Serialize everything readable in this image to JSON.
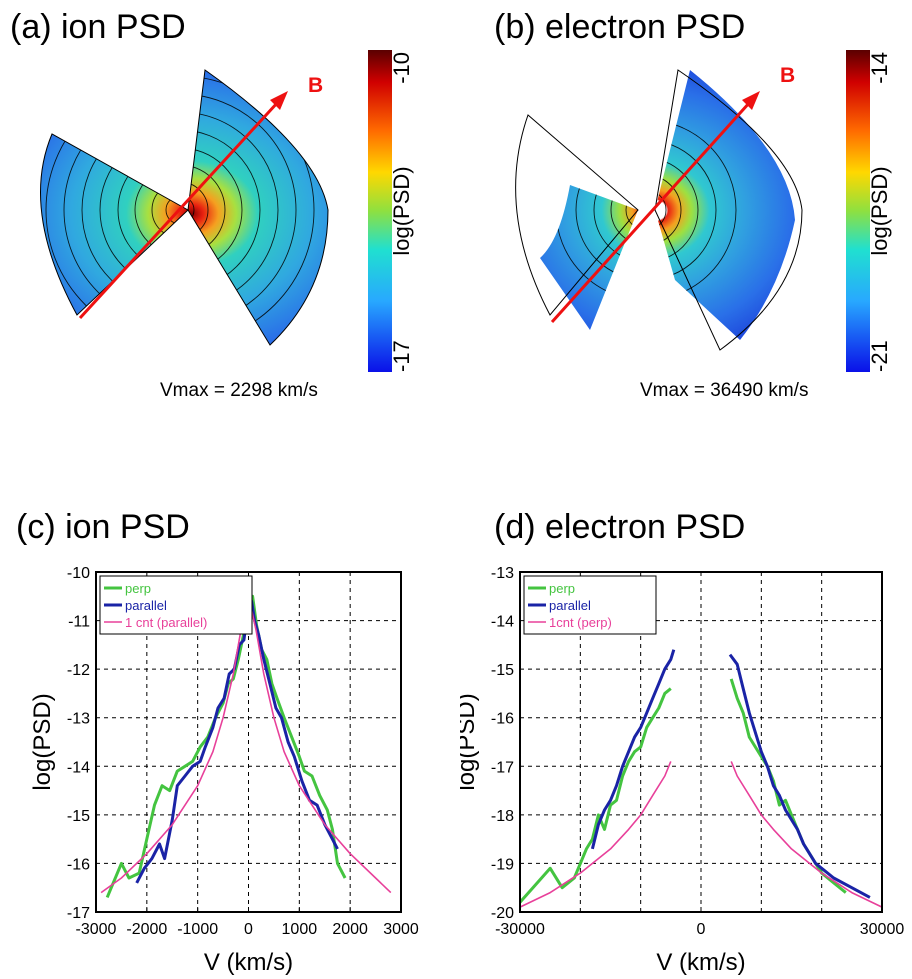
{
  "panels": {
    "a": {
      "title": "(a) ion PSD",
      "vmax": "Vmax = 2298 km/s",
      "b_label": "B",
      "colorbar": {
        "label": "log(PSD)",
        "max": "-10",
        "min": "-17"
      }
    },
    "b": {
      "title": "(b) electron PSD",
      "vmax": "Vmax = 36490 km/s",
      "b_label": "B",
      "colorbar": {
        "label": "log(PSD)",
        "max": "-14",
        "min": "-21"
      }
    },
    "c": {
      "title": "(c) ion PSD"
    },
    "d": {
      "title": "(d) electron PSD"
    }
  },
  "colors": {
    "perp": "#44c440",
    "parallel": "#1a23a6",
    "count": "#e8409a",
    "b_arrow": "#ee1111"
  },
  "chart_data": [
    {
      "type": "line",
      "xlabel": "V (km/s)",
      "ylabel": "log(PSD)",
      "xlim": [
        -3000,
        3000
      ],
      "ylim": [
        -17,
        -10
      ],
      "xticks": [
        -3000,
        -2000,
        -1000,
        0,
        1000,
        2000,
        3000
      ],
      "xtick_labels": [
        "-3000",
        "-2000",
        "-1000",
        "0",
        "1000",
        "2000",
        "3000"
      ],
      "yticks": [
        -17,
        -16,
        -15,
        -14,
        -13,
        -12,
        -11,
        -10
      ],
      "ytick_labels": [
        "-17",
        "-16",
        "-15",
        "-14",
        "-13",
        "-12",
        "-11",
        "-10"
      ],
      "grid": true,
      "legend": "top-left",
      "series": [
        {
          "name": "perp",
          "color": "#44c440",
          "width": 3,
          "segments": [
            [
              [
                -2780,
                -16.7
              ],
              [
                -2500,
                -16.0
              ],
              [
                -2350,
                -16.3
              ],
              [
                -2150,
                -16.2
              ],
              [
                -2000,
                -15.5
              ],
              [
                -1850,
                -14.8
              ],
              [
                -1700,
                -14.4
              ],
              [
                -1550,
                -14.5
              ],
              [
                -1400,
                -14.1
              ],
              [
                -1250,
                -14.0
              ],
              [
                -1100,
                -13.9
              ],
              [
                -950,
                -13.6
              ],
              [
                -800,
                -13.4
              ],
              [
                -650,
                -13.0
              ],
              [
                -500,
                -12.7
              ],
              [
                -400,
                -12.3
              ],
              [
                -300,
                -12.2
              ],
              [
                -200,
                -11.8
              ],
              [
                -100,
                -11.3
              ],
              [
                0,
                -10.6
              ],
              [
                80,
                -10.5
              ],
              [
                160,
                -11.1
              ],
              [
                260,
                -11.6
              ],
              [
                360,
                -11.8
              ],
              [
                460,
                -12.3
              ],
              [
                560,
                -12.6
              ],
              [
                700,
                -13.0
              ],
              [
                850,
                -13.4
              ],
              [
                1000,
                -13.8
              ],
              [
                1100,
                -14.1
              ],
              [
                1250,
                -14.2
              ],
              [
                1400,
                -14.6
              ],
              [
                1550,
                -14.9
              ],
              [
                1650,
                -15.3
              ],
              [
                1750,
                -16.0
              ],
              [
                1900,
                -16.3
              ]
            ]
          ]
        },
        {
          "name": "parallel",
          "color": "#1a23a6",
          "width": 3,
          "segments": [
            [
              [
                -2200,
                -16.4
              ],
              [
                -2050,
                -16.1
              ],
              [
                -1900,
                -15.9
              ],
              [
                -1750,
                -15.6
              ],
              [
                -1650,
                -15.9
              ],
              [
                -1500,
                -15.1
              ],
              [
                -1400,
                -14.4
              ],
              [
                -1250,
                -14.2
              ],
              [
                -1100,
                -14.0
              ],
              [
                -950,
                -13.9
              ],
              [
                -850,
                -13.6
              ],
              [
                -700,
                -13.2
              ],
              [
                -600,
                -12.8
              ],
              [
                -480,
                -12.6
              ],
              [
                -380,
                -12.1
              ],
              [
                -280,
                -12.0
              ],
              [
                -180,
                -11.5
              ],
              [
                -90,
                -11.4
              ],
              [
                0,
                -10.7
              ],
              [
                60,
                -10.6
              ],
              [
                120,
                -11.0
              ],
              [
                200,
                -11.3
              ],
              [
                300,
                -11.8
              ],
              [
                420,
                -12.3
              ],
              [
                540,
                -12.8
              ],
              [
                650,
                -13.0
              ],
              [
                780,
                -13.5
              ],
              [
                900,
                -13.8
              ],
              [
                1050,
                -14.3
              ],
              [
                1200,
                -14.7
              ],
              [
                1350,
                -14.8
              ],
              [
                1500,
                -15.2
              ],
              [
                1650,
                -15.5
              ],
              [
                1750,
                -15.7
              ]
            ]
          ]
        },
        {
          "name": "1 cnt (parallel)",
          "color": "#e8409a",
          "width": 1.6,
          "segments": [
            [
              [
                -2900,
                -16.6
              ],
              [
                -2500,
                -16.3
              ],
              [
                -2000,
                -15.8
              ],
              [
                -1500,
                -15.2
              ],
              [
                -1000,
                -14.4
              ],
              [
                -700,
                -13.7
              ],
              [
                -500,
                -13.0
              ],
              [
                -300,
                -12.1
              ],
              [
                -150,
                -11.2
              ],
              [
                0,
                -10.5
              ],
              [
                150,
                -11.2
              ],
              [
                300,
                -12.1
              ],
              [
                500,
                -13.0
              ],
              [
                700,
                -13.7
              ],
              [
                1000,
                -14.4
              ],
              [
                1500,
                -15.2
              ],
              [
                2000,
                -15.8
              ],
              [
                2500,
                -16.3
              ],
              [
                2800,
                -16.6
              ]
            ]
          ]
        }
      ]
    },
    {
      "type": "line",
      "xlabel": "V (km/s)",
      "ylabel": "log(PSD)",
      "xlim": [
        -30000,
        30000
      ],
      "ylim": [
        -20,
        -13
      ],
      "xticks": [
        -30000,
        0,
        30000
      ],
      "xtick_labels": [
        "-30000",
        "0",
        "30000"
      ],
      "xgrid": [
        -30000,
        -20000,
        -10000,
        0,
        10000,
        20000,
        30000
      ],
      "yticks": [
        -20,
        -19,
        -18,
        -17,
        -16,
        -15,
        -14,
        -13
      ],
      "ytick_labels": [
        "-20",
        "-19",
        "-18",
        "-17",
        "-16",
        "-15",
        "-14",
        "-13"
      ],
      "grid": true,
      "legend": "top-left",
      "series": [
        {
          "name": "perp",
          "color": "#44c440",
          "width": 3,
          "segments": [
            [
              [
                -30000,
                -19.8
              ],
              [
                -25000,
                -19.1
              ],
              [
                -23000,
                -19.5
              ],
              [
                -21000,
                -19.3
              ],
              [
                -19000,
                -18.7
              ],
              [
                -18000,
                -18.5
              ],
              [
                -17000,
                -18.0
              ],
              [
                -16000,
                -18.3
              ],
              [
                -15000,
                -17.8
              ],
              [
                -14000,
                -17.7
              ],
              [
                -13000,
                -17.2
              ],
              [
                -12000,
                -16.9
              ],
              [
                -11000,
                -16.7
              ],
              [
                -10000,
                -16.6
              ],
              [
                -9000,
                -16.2
              ],
              [
                -8000,
                -16.0
              ],
              [
                -7000,
                -15.8
              ],
              [
                -6000,
                -15.5
              ],
              [
                -5000,
                -15.4
              ]
            ],
            [
              [
                5000,
                -15.2
              ],
              [
                6000,
                -15.6
              ],
              [
                7000,
                -15.9
              ],
              [
                8000,
                -16.4
              ],
              [
                9000,
                -16.6
              ],
              [
                10000,
                -16.8
              ],
              [
                11000,
                -17.0
              ],
              [
                12000,
                -17.3
              ],
              [
                13000,
                -17.8
              ],
              [
                14000,
                -17.7
              ],
              [
                15000,
                -18.0
              ],
              [
                16000,
                -18.3
              ],
              [
                17000,
                -18.6
              ],
              [
                18000,
                -18.8
              ],
              [
                19000,
                -19.0
              ],
              [
                20000,
                -19.2
              ],
              [
                22000,
                -19.4
              ],
              [
                24000,
                -19.6
              ]
            ]
          ]
        },
        {
          "name": "parallel",
          "color": "#1a23a6",
          "width": 3,
          "segments": [
            [
              [
                -18000,
                -18.7
              ],
              [
                -17000,
                -18.2
              ],
              [
                -16000,
                -17.9
              ],
              [
                -15000,
                -17.7
              ],
              [
                -14000,
                -17.4
              ],
              [
                -13000,
                -17.0
              ],
              [
                -12000,
                -16.7
              ],
              [
                -11000,
                -16.4
              ],
              [
                -10000,
                -16.2
              ],
              [
                -9000,
                -15.9
              ],
              [
                -8000,
                -15.6
              ],
              [
                -7000,
                -15.3
              ],
              [
                -6000,
                -15.0
              ],
              [
                -5000,
                -14.8
              ],
              [
                -4500,
                -14.6
              ]
            ],
            [
              [
                4800,
                -14.7
              ],
              [
                6000,
                -14.9
              ],
              [
                7000,
                -15.4
              ],
              [
                8000,
                -15.9
              ],
              [
                9000,
                -16.3
              ],
              [
                10000,
                -16.7
              ],
              [
                11000,
                -17.0
              ],
              [
                12000,
                -17.4
              ],
              [
                13000,
                -17.6
              ],
              [
                14000,
                -17.9
              ],
              [
                15000,
                -18.1
              ],
              [
                16000,
                -18.3
              ],
              [
                17000,
                -18.6
              ],
              [
                18000,
                -18.8
              ],
              [
                19000,
                -19.0
              ],
              [
                20000,
                -19.1
              ],
              [
                22000,
                -19.3
              ],
              [
                25000,
                -19.5
              ],
              [
                28000,
                -19.7
              ]
            ]
          ]
        },
        {
          "name": "1cnt (perp)",
          "color": "#e8409a",
          "width": 1.6,
          "segments": [
            [
              [
                -30000,
                -19.9
              ],
              [
                -25000,
                -19.6
              ],
              [
                -20000,
                -19.2
              ],
              [
                -15000,
                -18.7
              ],
              [
                -12000,
                -18.3
              ],
              [
                -10000,
                -18.0
              ],
              [
                -8000,
                -17.6
              ],
              [
                -6000,
                -17.2
              ],
              [
                -5000,
                -16.9
              ]
            ],
            [
              [
                5000,
                -16.9
              ],
              [
                6000,
                -17.2
              ],
              [
                8000,
                -17.6
              ],
              [
                10000,
                -18.0
              ],
              [
                12000,
                -18.3
              ],
              [
                15000,
                -18.7
              ],
              [
                20000,
                -19.2
              ],
              [
                25000,
                -19.6
              ],
              [
                30000,
                -19.9
              ]
            ]
          ]
        }
      ]
    }
  ]
}
